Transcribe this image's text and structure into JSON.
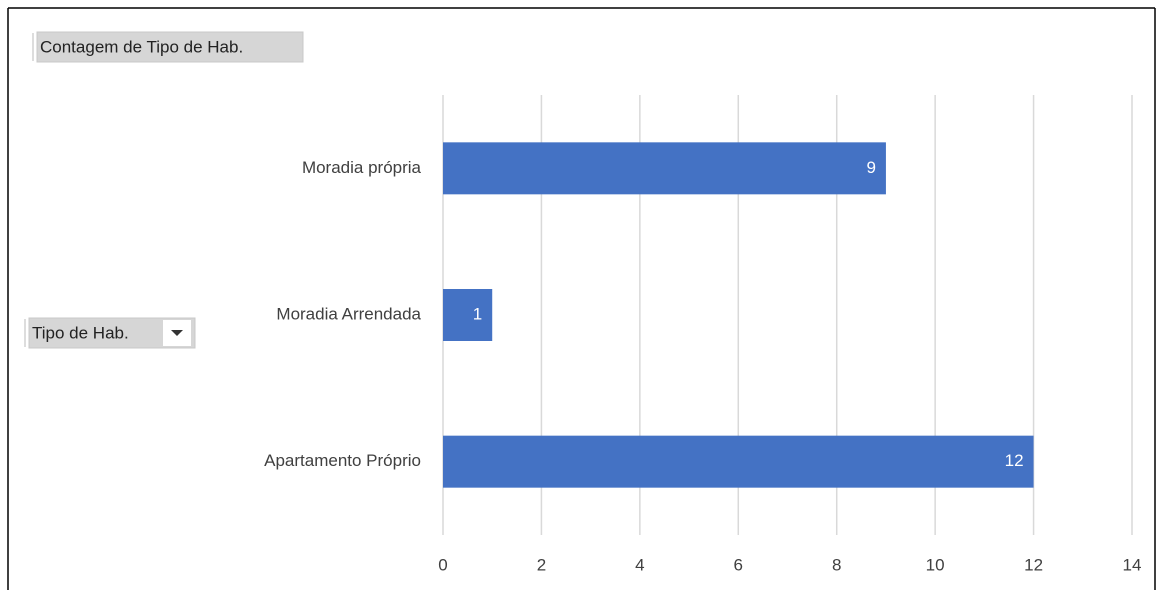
{
  "chart_data": {
    "type": "bar",
    "orientation": "horizontal",
    "field_buttons": {
      "values": "Contagem de Tipo de Hab.",
      "axis": "Tipo de Hab."
    },
    "categories": [
      "Moradia própria",
      "Moradia Arrendada",
      "Apartamento Próprio"
    ],
    "values": [
      9,
      1,
      12
    ],
    "color": "#4472c4",
    "data_labels": true,
    "xlim": [
      0,
      14
    ],
    "xticks": [
      0,
      2,
      4,
      6,
      8,
      10,
      12,
      14
    ],
    "grid": true
  }
}
